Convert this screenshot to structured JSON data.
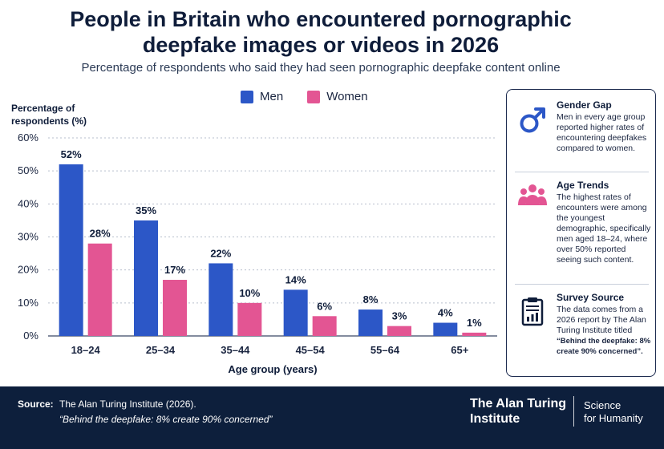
{
  "header": {
    "title_line1": "People in Britain who encountered pornographic",
    "title_line2": "deepfake images or videos in 2026",
    "subtitle": "Percentage of respondents who said they had seen pornographic deepfake content online"
  },
  "legend": {
    "men_label": "Men",
    "women_label": "Women",
    "men_color": "#2c57c7",
    "women_color": "#e35593"
  },
  "chart_data": {
    "type": "bar",
    "categories": [
      "18–24",
      "25–34",
      "35–44",
      "45–54",
      "55–64",
      "65+"
    ],
    "series": [
      {
        "name": "Men",
        "values": [
          52,
          35,
          22,
          14,
          8,
          4
        ],
        "labels": [
          "52%",
          "35%",
          "22%",
          "14%",
          "8%",
          "4%"
        ],
        "color": "#2c57c7"
      },
      {
        "name": "Women",
        "values": [
          28,
          17,
          10,
          6,
          3,
          1
        ],
        "labels": [
          "28%",
          "17%",
          "10%",
          "6%",
          "3%",
          "1%"
        ],
        "color": "#e35593"
      }
    ],
    "ylabel_line1": "Percentage of",
    "ylabel_line2": "respondents (%)",
    "xlabel": "Age group (years)",
    "ylim": [
      0,
      60
    ],
    "yticks": [
      0,
      10,
      20,
      30,
      40,
      50,
      60
    ],
    "ytick_labels": [
      "0%",
      "10%",
      "20%",
      "30%",
      "40%",
      "50%",
      "60%"
    ],
    "grid": true,
    "legend_position": "top"
  },
  "side_panel": {
    "gender": {
      "icon": "male-symbol-icon",
      "heading": "Gender Gap",
      "text": "Men in every age group reported higher rates of encountering deepfakes compared to women."
    },
    "age": {
      "icon": "people-group-icon",
      "heading": "Age Trends",
      "text": "The highest rates of encounters were among the youngest demographic, specifically men aged 18–24, where over 50% reported seeing such content."
    },
    "survey": {
      "icon": "clipboard-chart-icon",
      "heading": "Survey Source",
      "text": "The data comes from a 2026 report by The Alan Turing Institute titled",
      "quote": "“Behind the deepfake: 8% create 90% concerned”."
    }
  },
  "footer": {
    "source_label": "Source:",
    "source_text": "The Alan Turing Institute (2026).",
    "source_quote": "“Behind the deepfake: 8% create 90% concerned”",
    "brand_line1": "The Alan Turing",
    "brand_line2": "Institute",
    "tagline_line1": "Science",
    "tagline_line2": "for Humanity"
  }
}
